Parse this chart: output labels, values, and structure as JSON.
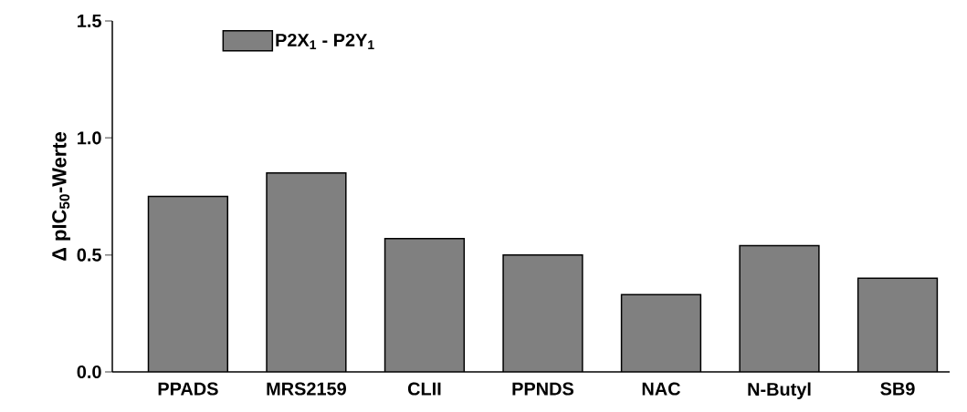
{
  "chart_data": {
    "type": "bar",
    "ylabel": "Δ pIC$_{50}$-Werte",
    "categories": [
      "PPADS",
      "MRS2159",
      "CLII",
      "PPNDS",
      "NAC",
      "N-Butyl",
      "SB9"
    ],
    "series": [
      {
        "name": "P2X$_{1}$ - P2Y$_{1}$",
        "color": "#808080",
        "values": [
          0.75,
          0.85,
          0.57,
          0.5,
          0.33,
          0.54,
          0.4
        ]
      }
    ],
    "ylim": [
      0,
      1.5
    ],
    "yticks": [
      {
        "value": 0,
        "label": "0.0"
      },
      {
        "value": 0.5,
        "label": "0.5"
      },
      {
        "value": 1,
        "label": "1.0"
      },
      {
        "value": 1.5,
        "label": "1.5"
      }
    ],
    "grid": false,
    "legend": "top left"
  }
}
